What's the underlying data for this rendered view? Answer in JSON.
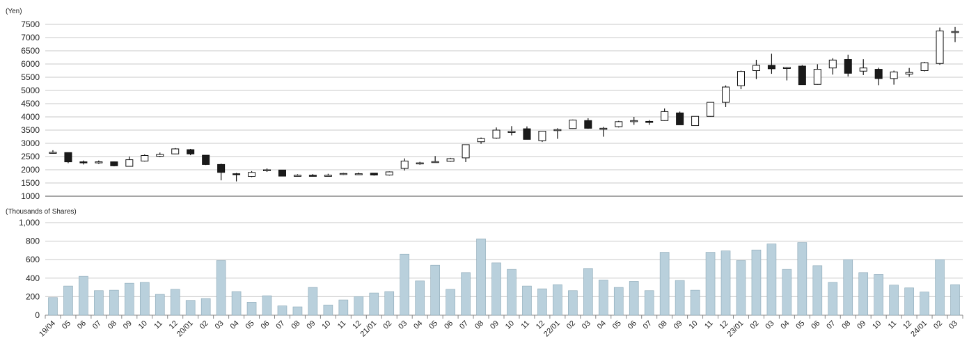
{
  "chart_data": [
    {
      "type": "candlestick",
      "unit_label": "(Yen)",
      "ylim": [
        1000,
        7500
      ],
      "y_ticks": [
        1000,
        1500,
        2000,
        2500,
        3000,
        3500,
        4000,
        4500,
        5000,
        5500,
        6000,
        6500,
        7000,
        7500
      ],
      "grid": true,
      "candles": [
        {
          "o": 2650,
          "h": 2740,
          "l": 2610,
          "c": 2660
        },
        {
          "o": 2650,
          "h": 2650,
          "l": 2250,
          "c": 2300
        },
        {
          "o": 2300,
          "h": 2350,
          "l": 2200,
          "c": 2280
        },
        {
          "o": 2280,
          "h": 2350,
          "l": 2220,
          "c": 2300
        },
        {
          "o": 2300,
          "h": 2310,
          "l": 2130,
          "c": 2150
        },
        {
          "o": 2130,
          "h": 2500,
          "l": 2120,
          "c": 2380
        },
        {
          "o": 2330,
          "h": 2580,
          "l": 2310,
          "c": 2540
        },
        {
          "o": 2510,
          "h": 2650,
          "l": 2480,
          "c": 2580
        },
        {
          "o": 2600,
          "h": 2820,
          "l": 2590,
          "c": 2790
        },
        {
          "o": 2760,
          "h": 2790,
          "l": 2550,
          "c": 2600
        },
        {
          "o": 2550,
          "h": 2550,
          "l": 2180,
          "c": 2200
        },
        {
          "o": 2200,
          "h": 2230,
          "l": 1600,
          "c": 1900
        },
        {
          "o": 1850,
          "h": 1880,
          "l": 1560,
          "c": 1840
        },
        {
          "o": 1750,
          "h": 1950,
          "l": 1720,
          "c": 1900
        },
        {
          "o": 1970,
          "h": 2050,
          "l": 1920,
          "c": 2000
        },
        {
          "o": 1990,
          "h": 1990,
          "l": 1750,
          "c": 1760
        },
        {
          "o": 1780,
          "h": 1830,
          "l": 1740,
          "c": 1790
        },
        {
          "o": 1790,
          "h": 1840,
          "l": 1750,
          "c": 1780
        },
        {
          "o": 1780,
          "h": 1850,
          "l": 1750,
          "c": 1790
        },
        {
          "o": 1820,
          "h": 1880,
          "l": 1800,
          "c": 1860
        },
        {
          "o": 1830,
          "h": 1890,
          "l": 1800,
          "c": 1850
        },
        {
          "o": 1870,
          "h": 1880,
          "l": 1780,
          "c": 1800
        },
        {
          "o": 1800,
          "h": 1940,
          "l": 1780,
          "c": 1920
        },
        {
          "o": 2050,
          "h": 2430,
          "l": 1970,
          "c": 2330
        },
        {
          "o": 2250,
          "h": 2300,
          "l": 2190,
          "c": 2260
        },
        {
          "o": 2300,
          "h": 2520,
          "l": 2280,
          "c": 2310
        },
        {
          "o": 2320,
          "h": 2450,
          "l": 2300,
          "c": 2420
        },
        {
          "o": 2450,
          "h": 2950,
          "l": 2290,
          "c": 2950
        },
        {
          "o": 3060,
          "h": 3220,
          "l": 2980,
          "c": 3180
        },
        {
          "o": 3200,
          "h": 3600,
          "l": 3170,
          "c": 3500
        },
        {
          "o": 3420,
          "h": 3650,
          "l": 3300,
          "c": 3450
        },
        {
          "o": 3550,
          "h": 3640,
          "l": 3150,
          "c": 3150
        },
        {
          "o": 3100,
          "h": 3470,
          "l": 3050,
          "c": 3460
        },
        {
          "o": 3500,
          "h": 3570,
          "l": 3170,
          "c": 3520
        },
        {
          "o": 3560,
          "h": 3900,
          "l": 3550,
          "c": 3880
        },
        {
          "o": 3860,
          "h": 3950,
          "l": 3550,
          "c": 3570
        },
        {
          "o": 3570,
          "h": 3620,
          "l": 3250,
          "c": 3570
        },
        {
          "o": 3630,
          "h": 3850,
          "l": 3600,
          "c": 3820
        },
        {
          "o": 3820,
          "h": 4000,
          "l": 3700,
          "c": 3860
        },
        {
          "o": 3830,
          "h": 3880,
          "l": 3700,
          "c": 3800
        },
        {
          "o": 3860,
          "h": 4320,
          "l": 3850,
          "c": 4200
        },
        {
          "o": 4150,
          "h": 4200,
          "l": 3700,
          "c": 3700
        },
        {
          "o": 3670,
          "h": 4020,
          "l": 3660,
          "c": 4020
        },
        {
          "o": 4020,
          "h": 4550,
          "l": 4010,
          "c": 4550
        },
        {
          "o": 4550,
          "h": 5190,
          "l": 4370,
          "c": 5130
        },
        {
          "o": 5180,
          "h": 5750,
          "l": 5050,
          "c": 5720
        },
        {
          "o": 5750,
          "h": 6160,
          "l": 5430,
          "c": 5950
        },
        {
          "o": 5950,
          "h": 6390,
          "l": 5630,
          "c": 5820
        },
        {
          "o": 5830,
          "h": 5890,
          "l": 5380,
          "c": 5870
        },
        {
          "o": 5920,
          "h": 5960,
          "l": 5220,
          "c": 5220
        },
        {
          "o": 5230,
          "h": 5990,
          "l": 5220,
          "c": 5800
        },
        {
          "o": 5850,
          "h": 6220,
          "l": 5600,
          "c": 6150
        },
        {
          "o": 6170,
          "h": 6350,
          "l": 5530,
          "c": 5650
        },
        {
          "o": 5730,
          "h": 6180,
          "l": 5580,
          "c": 5850
        },
        {
          "o": 5800,
          "h": 5860,
          "l": 5200,
          "c": 5450
        },
        {
          "o": 5450,
          "h": 5750,
          "l": 5220,
          "c": 5700
        },
        {
          "o": 5620,
          "h": 5850,
          "l": 5520,
          "c": 5680
        },
        {
          "o": 5750,
          "h": 6080,
          "l": 5720,
          "c": 6050
        },
        {
          "o": 6020,
          "h": 7380,
          "l": 5970,
          "c": 7250
        },
        {
          "o": 7200,
          "h": 7400,
          "l": 6830,
          "c": 7230
        }
      ]
    },
    {
      "type": "bar",
      "unit_label": "(Thousands of Shares)",
      "ylim": [
        0,
        1000
      ],
      "y_ticks": [
        0,
        200,
        400,
        600,
        800,
        1000
      ],
      "y_tick_labels": [
        "0",
        "200",
        "400",
        "600",
        "800",
        "1,000"
      ],
      "grid": true,
      "categories": [
        "19/04",
        "05",
        "06",
        "07",
        "08",
        "09",
        "10",
        "11",
        "12",
        "20/01",
        "02",
        "03",
        "04",
        "05",
        "06",
        "07",
        "08",
        "09",
        "10",
        "11",
        "12",
        "21/01",
        "02",
        "03",
        "04",
        "05",
        "06",
        "07",
        "08",
        "09",
        "10",
        "11",
        "12",
        "22/01",
        "02",
        "03",
        "04",
        "05",
        "06",
        "07",
        "08",
        "09",
        "10",
        "11",
        "12",
        "23/01",
        "02",
        "03",
        "04",
        "05",
        "06",
        "07",
        "08",
        "09",
        "10",
        "11",
        "12",
        "24/01",
        "02",
        "03"
      ],
      "values": [
        190,
        315,
        420,
        265,
        270,
        345,
        355,
        225,
        280,
        160,
        180,
        590,
        255,
        140,
        210,
        100,
        90,
        300,
        110,
        165,
        200,
        240,
        255,
        660,
        370,
        540,
        280,
        460,
        825,
        565,
        495,
        315,
        285,
        330,
        265,
        505,
        380,
        300,
        365,
        265,
        680,
        375,
        270,
        680,
        695,
        590,
        705,
        770,
        495,
        785,
        535,
        355,
        600,
        460,
        440,
        325,
        295,
        250,
        600,
        330
      ],
      "bar_color": "#b9d0dc"
    }
  ]
}
